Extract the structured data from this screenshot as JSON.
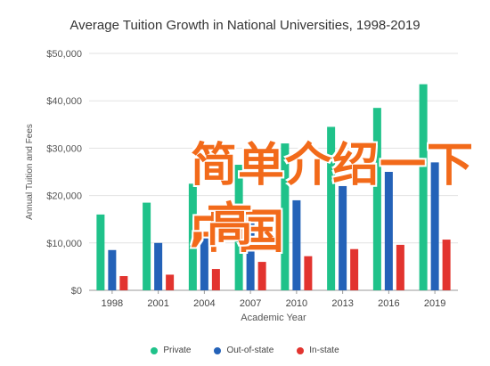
{
  "chart_data": {
    "type": "bar",
    "title": "Average Tuition Growth in National Universities, 1998-2019",
    "xlabel": "Academic Year",
    "ylabel": "Annual Tuition and Fees",
    "categories": [
      "1998",
      "2001",
      "2004",
      "2007",
      "2010",
      "2013",
      "2016",
      "2019"
    ],
    "series": [
      {
        "name": "Private",
        "color": "#1fc28a",
        "values": [
          16000,
          18500,
          22500,
          26500,
          31000,
          34500,
          38500,
          43500
        ]
      },
      {
        "name": "Out-of-state",
        "color": "#2462b8",
        "values": [
          8500,
          10000,
          12500,
          15500,
          19000,
          22000,
          25000,
          27000
        ]
      },
      {
        "name": "In-state",
        "color": "#e2342f",
        "values": [
          3000,
          3300,
          4500,
          6000,
          7200,
          8700,
          9600,
          10700
        ]
      }
    ],
    "yticks": [
      "$0",
      "$10,000",
      "$20,000",
      "$30,000",
      "$40,000",
      "$50,000"
    ],
    "ylim": [
      0,
      50000
    ],
    "grid": true,
    "legend_position": "bottom"
  },
  "overlay": {
    "line1": "简单介绍一下中国",
    "line2": ",高"
  }
}
